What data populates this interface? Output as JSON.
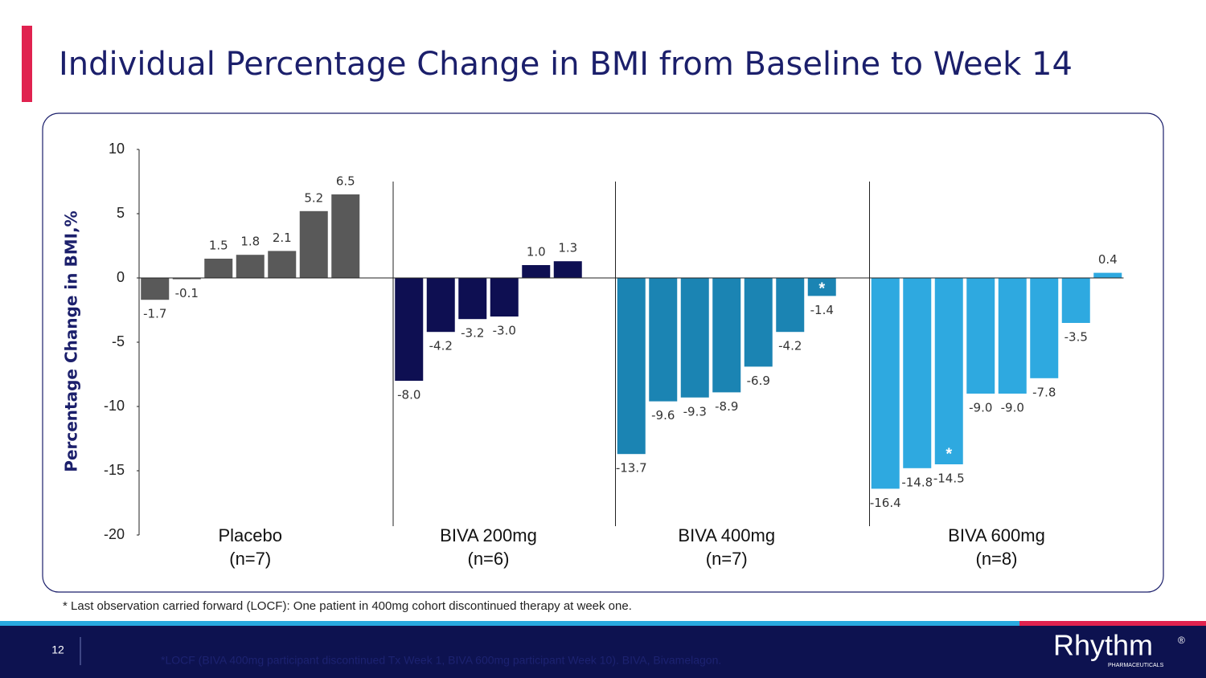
{
  "slide": {
    "title": "Individual Percentage Change in BMI from Baseline to Week 14",
    "footnote": "* Last observation carried forward (LOCF): One patient in 400mg cohort discontinued therapy at week one.",
    "page_number": "12",
    "bottom_note": "*LOCF (BIVA 400mg participant discontinued Tx Week 1, BIVA 600mg participant Week 10). BIVA, Bivamelagon.",
    "logo": "Rhythm",
    "logo_mark": "®",
    "logo_sub": "PHARMACEUTICALS"
  },
  "chart_data": {
    "type": "bar",
    "y_label": "Percentage Change in BMI,%",
    "ylim": [
      -20,
      10
    ],
    "yticks": [
      -20,
      -15,
      -10,
      -5,
      0,
      5,
      10
    ],
    "grid": false,
    "series": [
      {
        "name": "Placebo",
        "subname": "(n=7)",
        "color": "#595959",
        "values": [
          -1.7,
          -0.1,
          1.5,
          1.8,
          2.1,
          5.2,
          6.5
        ],
        "value_labels": [
          "-1.7",
          "-0.1",
          "1.5",
          "1.8",
          "2.1",
          "5.2",
          "6.5"
        ]
      },
      {
        "name": "BIVA 200mg",
        "subname": "(n=6)",
        "color": "#0e0f52",
        "values": [
          -8,
          -4.2,
          -3.2,
          -3,
          1,
          1.3
        ],
        "value_labels": [
          "-8.0",
          "-4.2",
          "-3.2",
          "-3.0",
          "1.0",
          "1.3"
        ]
      },
      {
        "name": "BIVA 400mg",
        "subname": "(n=7)",
        "color": "#1b84b3",
        "values": [
          -13.7,
          -9.6,
          -9.3,
          -8.9,
          -6.9,
          -4.2,
          -1.4
        ],
        "value_labels": [
          "-13.7",
          "-9.6",
          "-9.3",
          "-8.9",
          "-6.9",
          "-4.2",
          "-1.4"
        ],
        "notes": [
          null,
          null,
          null,
          null,
          null,
          null,
          "*"
        ]
      },
      {
        "name": "BIVA 600mg",
        "subname": "(n=8)",
        "color": "#2ea9e0",
        "values": [
          -16.4,
          -14.8,
          -14.5,
          -9,
          -9,
          -7.8,
          -3.5,
          0.4
        ],
        "value_labels": [
          "-16.4",
          "-14.8",
          "-14.5",
          "-9.0",
          "-9.0",
          "-7.8",
          "-3.5",
          "0.4"
        ],
        "notes": [
          null,
          null,
          "*",
          null,
          null,
          null,
          null,
          null
        ]
      }
    ]
  }
}
